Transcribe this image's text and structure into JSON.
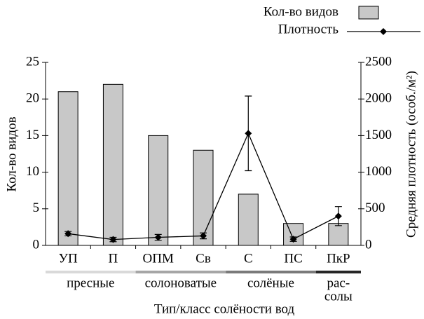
{
  "chart_data": {
    "type": "bar-line",
    "x_label": "Тип/класс солёности вод",
    "y_label": "Кол-во видов",
    "y2_label": "Средняя плотность (особ./м²)",
    "categories": [
      "УП",
      "П",
      "ОПМ",
      "Св",
      "С",
      "ПС",
      "ПкР"
    ],
    "series": [
      {
        "name": "Кол-во видов",
        "type": "bar",
        "color": "#c8c8c8",
        "values": [
          21,
          22,
          15,
          13,
          7,
          3,
          3
        ]
      },
      {
        "name": "Плотность",
        "type": "line",
        "axis": "y2",
        "color": "#000000",
        "values": [
          160,
          80,
          110,
          130,
          1530,
          85,
          400
        ],
        "errors": [
          30,
          30,
          40,
          40,
          510,
          30,
          130
        ]
      }
    ],
    "groups": [
      {
        "name": "пресные",
        "color": "#d9d9d9",
        "members": [
          "УП",
          "П"
        ]
      },
      {
        "name": "солоноватые",
        "color": "#a6a6a6",
        "members": [
          "ОПМ",
          "Св"
        ]
      },
      {
        "name": "солёные",
        "color": "#7a7a7a",
        "members": [
          "С",
          "ПС"
        ]
      },
      {
        "name": [
          "рас-",
          "солы"
        ],
        "color": "#262626",
        "members": [
          "ПкР"
        ]
      }
    ],
    "ylim": [
      0,
      25
    ],
    "yticks": [
      0,
      5,
      10,
      15,
      20,
      25
    ],
    "y2lim": [
      0,
      2500
    ],
    "y2ticks": [
      0,
      500,
      1000,
      1500,
      2000,
      2500
    ],
    "legend": "top-right"
  }
}
